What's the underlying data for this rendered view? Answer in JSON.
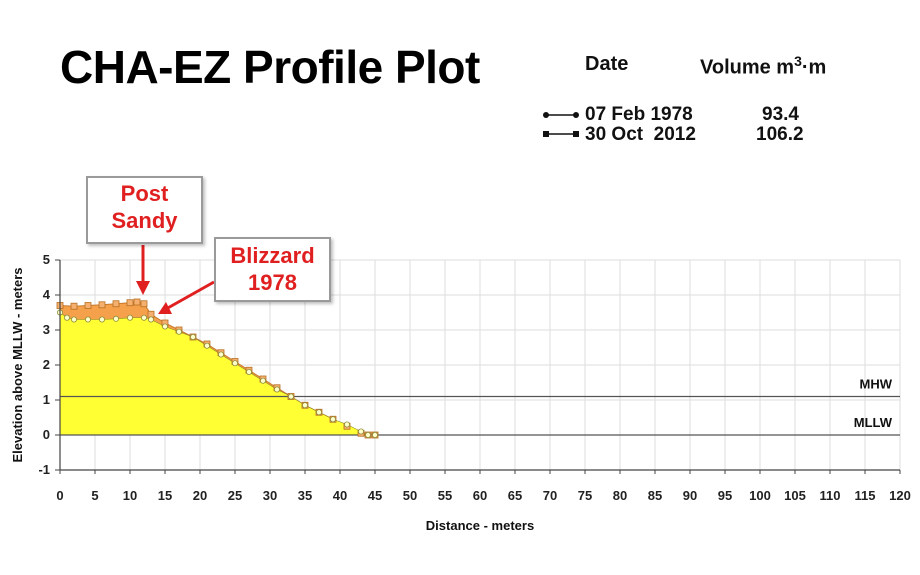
{
  "header": {
    "title": "CHA-EZ Profile Plot",
    "date_header": "Date",
    "volume_header": "Volume m",
    "volume_sup": "3",
    "volume_suffix": "·m"
  },
  "legend": [
    {
      "date": "07 Feb 1978",
      "volume": "93.4",
      "marker": "circle"
    },
    {
      "date": "30 Oct  2012",
      "volume": "106.2",
      "marker": "square"
    }
  ],
  "callouts": {
    "post_sandy": [
      "Post",
      "Sandy"
    ],
    "blizzard": [
      "Blizzard",
      "1978"
    ]
  },
  "colors": {
    "fill_1978": "#ffff33",
    "fill_2012": "#f5a04a",
    "callout_text": "#e02020",
    "callout_border": "#9a9a9a",
    "grid": "#dddddd"
  },
  "chart_data": {
    "type": "area",
    "xlabel": "Distance - meters",
    "ylabel": "Elevation above MLLW - meters",
    "xlim": [
      0,
      120
    ],
    "ylim": [
      -1,
      5
    ],
    "xticks": [
      0,
      5,
      10,
      15,
      20,
      25,
      30,
      35,
      40,
      45,
      50,
      55,
      60,
      65,
      70,
      75,
      80,
      85,
      90,
      95,
      100,
      105,
      110,
      115,
      120
    ],
    "yticks": [
      -1,
      0,
      1,
      2,
      3,
      4,
      5
    ],
    "grid": true,
    "reference_lines": [
      {
        "label": "MHW",
        "y": 1.1
      },
      {
        "label": "MLLW",
        "y": 0.0
      }
    ],
    "series": [
      {
        "name": "07 Feb 1978",
        "x": [
          0,
          1,
          2,
          4,
          6,
          8,
          10,
          12,
          13,
          15,
          17,
          19,
          21,
          23,
          25,
          27,
          29,
          31,
          33,
          35,
          37,
          39,
          41,
          43,
          44,
          45
        ],
        "y": [
          3.5,
          3.35,
          3.3,
          3.3,
          3.3,
          3.32,
          3.35,
          3.35,
          3.3,
          3.1,
          2.95,
          2.8,
          2.55,
          2.3,
          2.05,
          1.8,
          1.55,
          1.3,
          1.1,
          0.85,
          0.65,
          0.45,
          0.3,
          0.1,
          0.0,
          0.0
        ]
      },
      {
        "name": "30 Oct  2012",
        "x": [
          0,
          2,
          4,
          6,
          8,
          10,
          11,
          12,
          13,
          15,
          17,
          19,
          21,
          23,
          25,
          27,
          29,
          31,
          33,
          35,
          37,
          39,
          41,
          43,
          44,
          45
        ],
        "y": [
          3.7,
          3.68,
          3.7,
          3.72,
          3.75,
          3.78,
          3.8,
          3.75,
          3.45,
          3.2,
          3.0,
          2.8,
          2.6,
          2.35,
          2.1,
          1.85,
          1.6,
          1.35,
          1.1,
          0.85,
          0.65,
          0.45,
          0.25,
          0.05,
          0.0,
          0.0
        ]
      }
    ]
  }
}
